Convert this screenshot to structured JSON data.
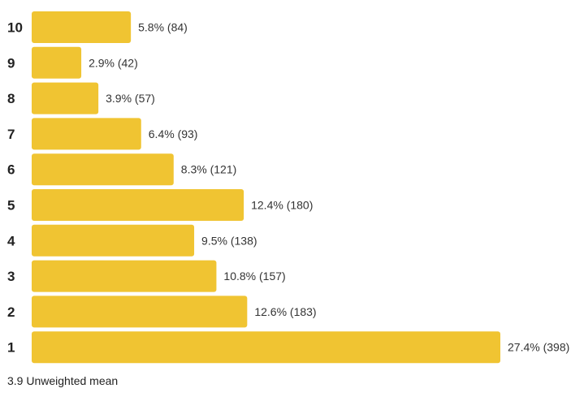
{
  "chart_data": {
    "type": "bar",
    "orientation": "horizontal",
    "categories": [
      "10",
      "9",
      "8",
      "7",
      "6",
      "5",
      "4",
      "3",
      "2",
      "1"
    ],
    "values": [
      5.8,
      2.9,
      3.9,
      6.4,
      8.3,
      12.4,
      9.5,
      10.8,
      12.6,
      27.4
    ],
    "counts": [
      84,
      42,
      57,
      93,
      121,
      180,
      138,
      157,
      183,
      398
    ],
    "value_labels": [
      "5.8% (84)",
      "2.9% (42)",
      "3.9% (57)",
      "6.4% (93)",
      "8.3% (121)",
      "12.4% (180)",
      "9.5% (138)",
      "10.8% (157)",
      "12.6% (183)",
      "27.4% (398)"
    ],
    "value_unit": "%",
    "xlim": [
      0,
      27.4
    ],
    "grid": false,
    "legend": false,
    "bar_color": "#F0C432"
  },
  "footer": {
    "mean_value": "3.9",
    "mean_label": "Unweighted mean"
  }
}
